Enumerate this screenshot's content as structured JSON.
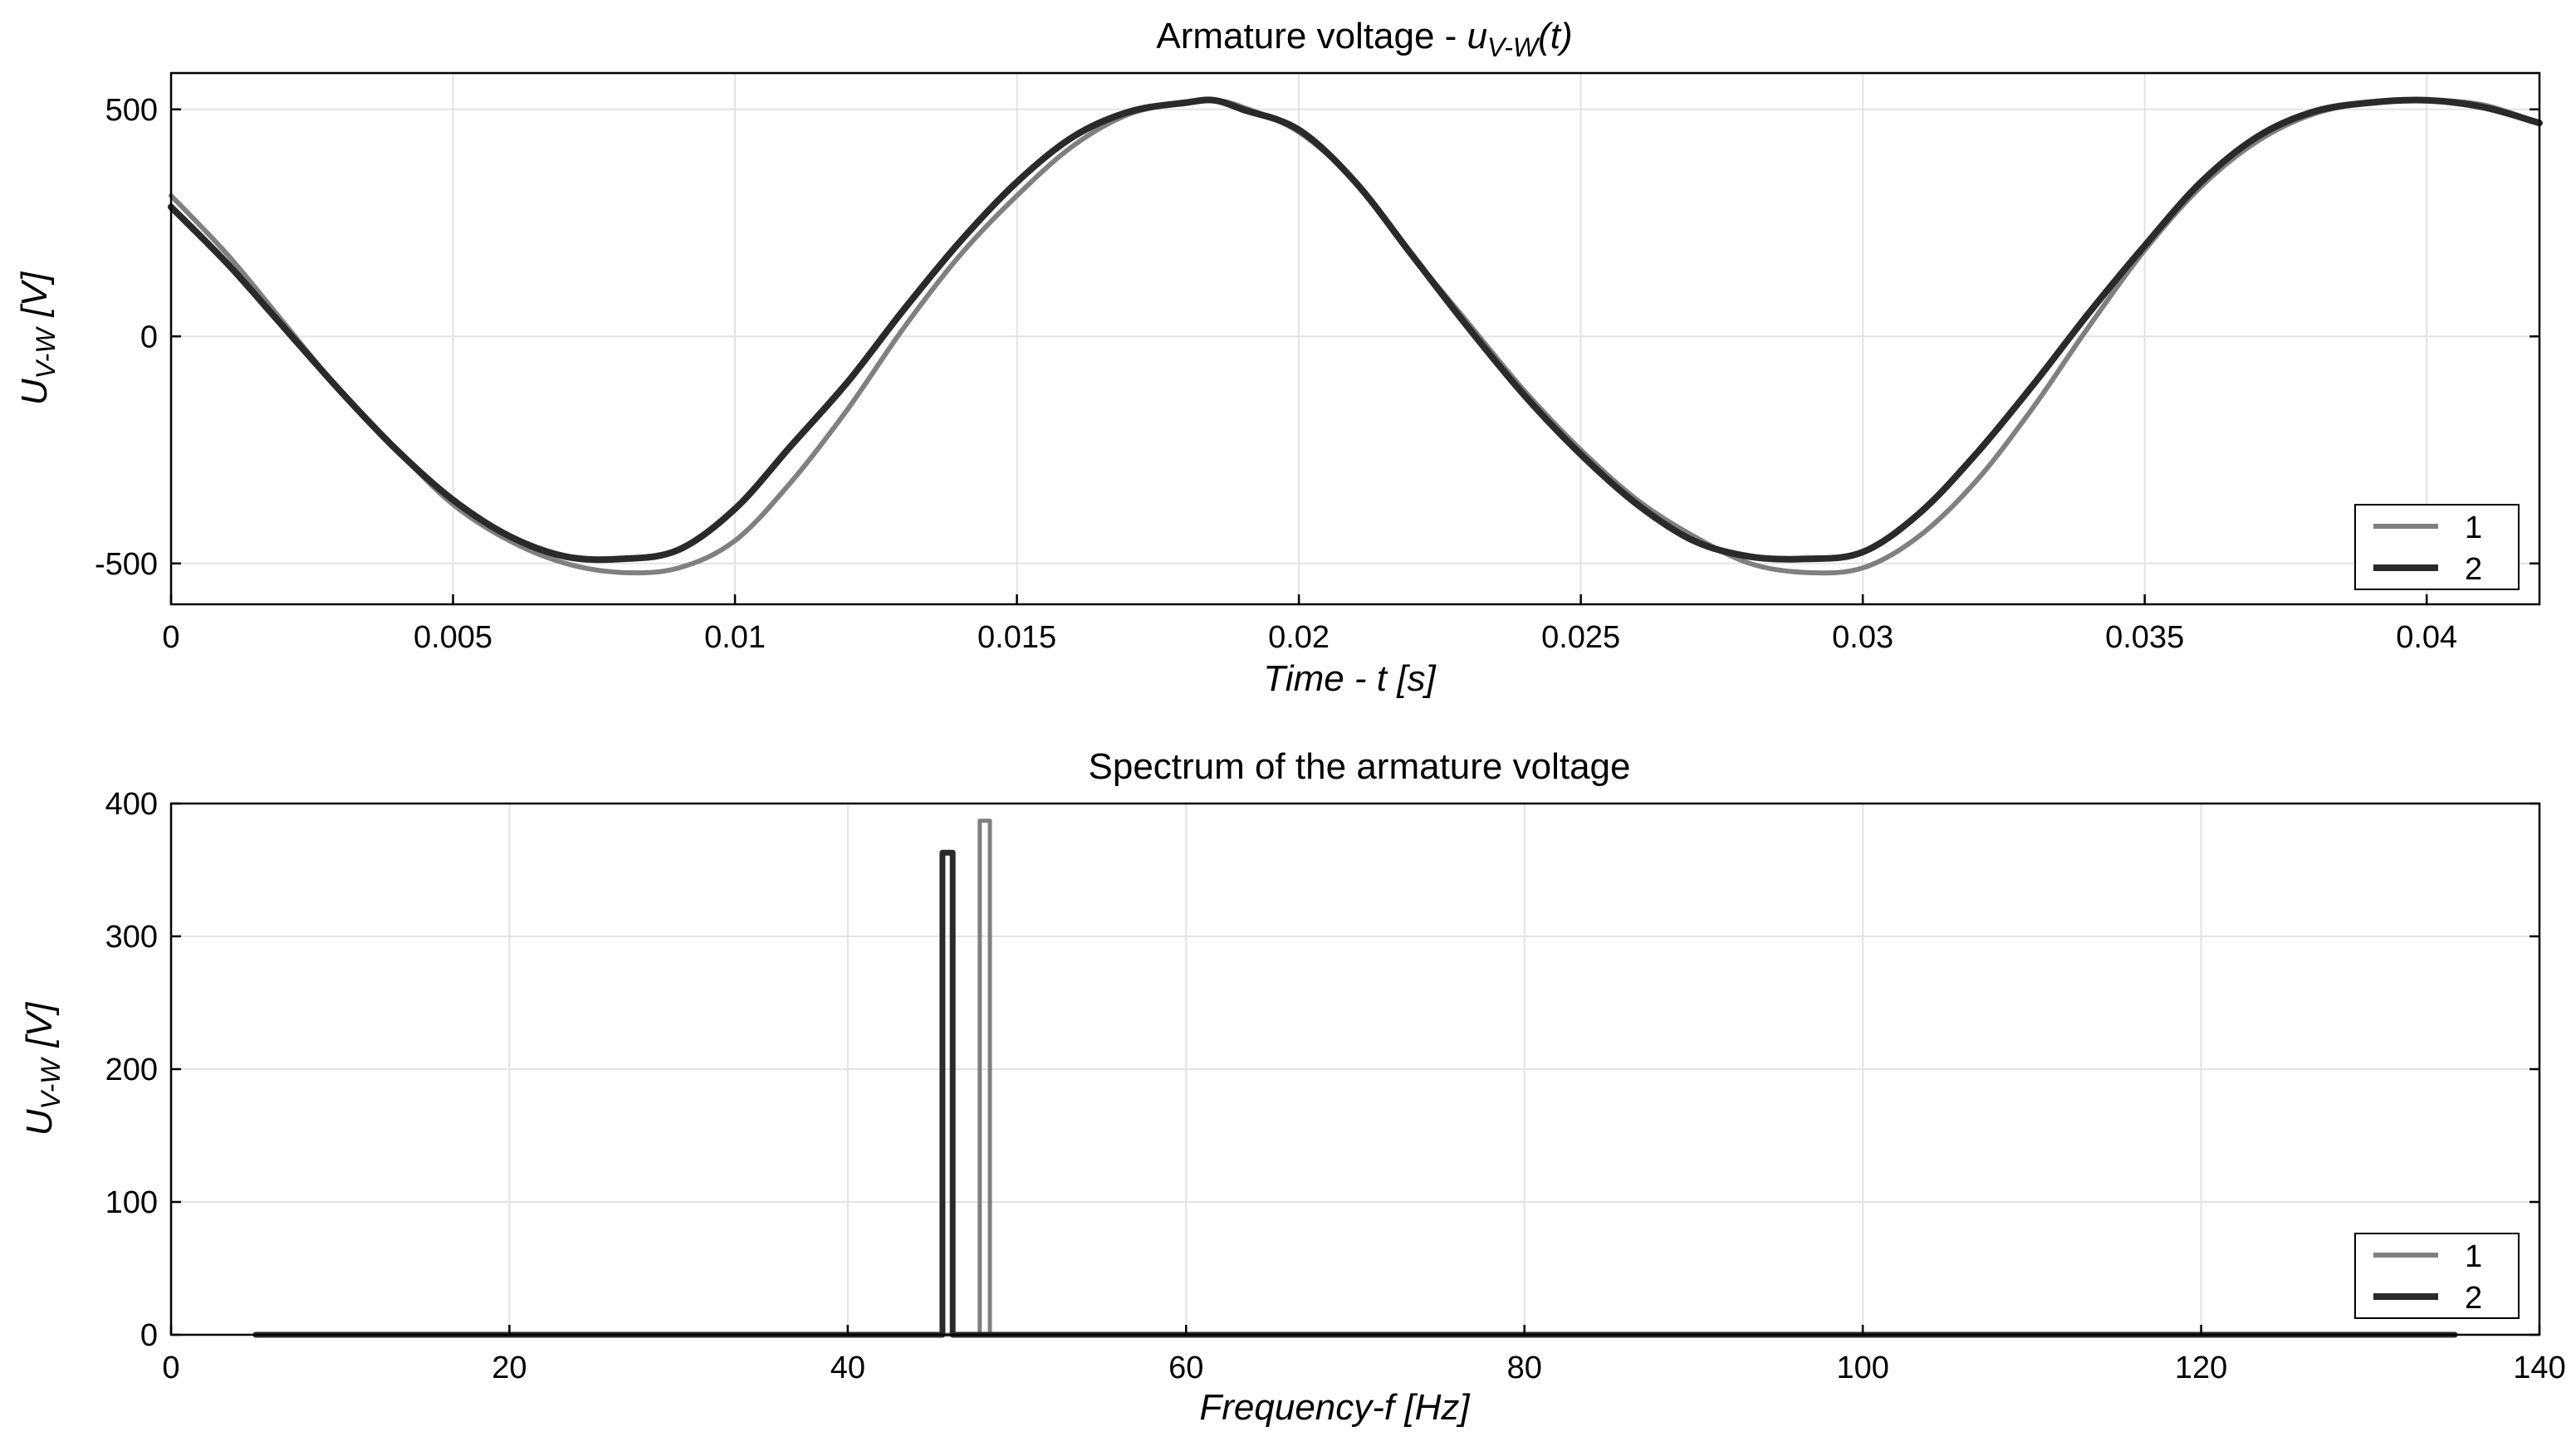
{
  "chart_data": [
    {
      "type": "line",
      "title": "Armature voltage - ",
      "title_var": "u",
      "title_sub": "V-W",
      "title_tail": "(t)",
      "xlabel": "Time - t [s]",
      "ylabel": "U",
      "ylabel_sub": "V-W",
      "ylabel_unit": "[V]",
      "xlim": [
        0,
        0.042
      ],
      "ylim": [
        -590,
        580
      ],
      "xticks": [
        0,
        0.005,
        0.01,
        0.015,
        0.02,
        0.025,
        0.03,
        0.035,
        0.04
      ],
      "xtick_labels": [
        "0",
        "0.005",
        "0.01",
        "0.015",
        "0.02",
        "0.025",
        "0.03",
        "0.035",
        "0.04"
      ],
      "yticks": [
        -500,
        0,
        500
      ],
      "ytick_labels": [
        "-500",
        "0",
        "500"
      ],
      "grid": true,
      "legend_position": "bottom-right",
      "series": [
        {
          "name": "1",
          "color": "#808080",
          "x": [
            0,
            0.001,
            0.002,
            0.003,
            0.004,
            0.005,
            0.006,
            0.007,
            0.008,
            0.009,
            0.01,
            0.011,
            0.012,
            0.013,
            0.014,
            0.015,
            0.016,
            0.017,
            0.018,
            0.0185,
            0.019,
            0.02,
            0.021,
            0.022,
            0.023,
            0.024,
            0.025,
            0.026,
            0.027,
            0.028,
            0.029,
            0.03,
            0.031,
            0.032,
            0.033,
            0.034,
            0.035,
            0.036,
            0.037,
            0.038,
            0.039,
            0.04,
            0.041,
            0.042
          ],
          "values": [
            310,
            180,
            30,
            -120,
            -250,
            -370,
            -450,
            -500,
            -520,
            -510,
            -450,
            -320,
            -160,
            20,
            180,
            310,
            420,
            490,
            515,
            520,
            505,
            450,
            340,
            180,
            30,
            -120,
            -250,
            -360,
            -440,
            -500,
            -520,
            -510,
            -440,
            -320,
            -160,
            20,
            190,
            330,
            430,
            490,
            515,
            520,
            510,
            470
          ]
        },
        {
          "name": "2",
          "color": "#2a2a2a",
          "x": [
            0,
            0.001,
            0.002,
            0.003,
            0.004,
            0.005,
            0.006,
            0.007,
            0.008,
            0.009,
            0.01,
            0.011,
            0.012,
            0.013,
            0.014,
            0.015,
            0.016,
            0.017,
            0.018,
            0.0185,
            0.019,
            0.02,
            0.021,
            0.022,
            0.023,
            0.024,
            0.025,
            0.026,
            0.027,
            0.028,
            0.029,
            0.03,
            0.031,
            0.032,
            0.033,
            0.034,
            0.035,
            0.036,
            0.037,
            0.038,
            0.039,
            0.04,
            0.041,
            0.042
          ],
          "values": [
            285,
            160,
            20,
            -120,
            -250,
            -360,
            -440,
            -485,
            -490,
            -470,
            -380,
            -240,
            -100,
            60,
            210,
            340,
            440,
            495,
            515,
            520,
            500,
            455,
            340,
            180,
            20,
            -130,
            -260,
            -370,
            -450,
            -485,
            -490,
            -475,
            -390,
            -260,
            -110,
            50,
            200,
            340,
            440,
            495,
            515,
            520,
            505,
            470
          ]
        }
      ]
    },
    {
      "type": "line",
      "title": "Spectrum of the armature voltage",
      "xlabel": "Frequency-f [Hz]",
      "ylabel": "U",
      "ylabel_sub": "V-W",
      "ylabel_unit": "[V]",
      "xlim": [
        0,
        140
      ],
      "ylim": [
        0,
        400
      ],
      "xticks": [
        0,
        20,
        40,
        60,
        80,
        100,
        120,
        140
      ],
      "xtick_labels": [
        "0",
        "20",
        "40",
        "60",
        "80",
        "100",
        "120",
        "140"
      ],
      "yticks": [
        0,
        100,
        200,
        300,
        400
      ],
      "ytick_labels": [
        "0",
        "100",
        "200",
        "300",
        "400"
      ],
      "grid": true,
      "legend_position": "bottom-right",
      "series": [
        {
          "name": "1",
          "color": "#808080",
          "x": [
            5,
            47.8,
            47.8,
            48.4,
            48.4,
            135
          ],
          "values": [
            0,
            0,
            387,
            387,
            0,
            0
          ]
        },
        {
          "name": "2",
          "color": "#2a2a2a",
          "x": [
            5,
            45.6,
            45.6,
            46.2,
            46.2,
            135
          ],
          "values": [
            0,
            0,
            363,
            363,
            0,
            0
          ]
        }
      ]
    }
  ]
}
